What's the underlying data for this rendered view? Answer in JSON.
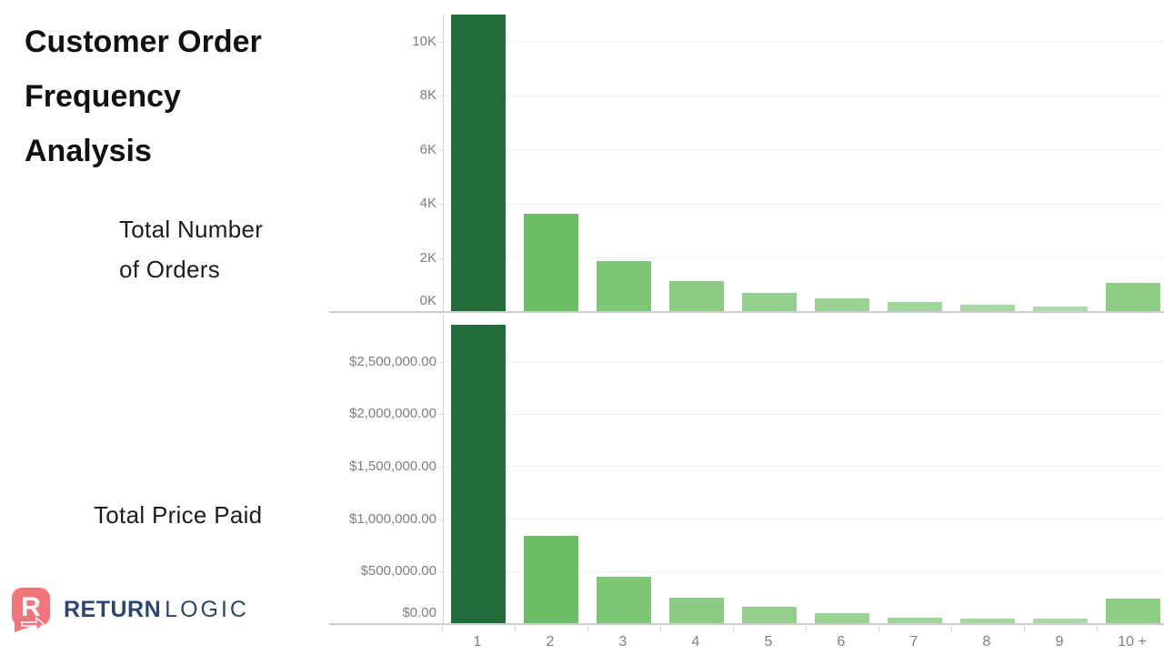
{
  "page": {
    "title_lines": [
      "Customer Order",
      "Frequency",
      "Analysis"
    ]
  },
  "labels": {
    "orders_lines": [
      "Total Number",
      "of Orders"
    ],
    "price": "Total Price Paid"
  },
  "logo": {
    "brand_bold": "RETURN",
    "brand_light": "LOGIC",
    "icon_color": "#f2757c",
    "text_color": "#2b4672"
  },
  "chart_data": [
    {
      "type": "bar",
      "title": "Total Number of Orders",
      "xlabel": "",
      "ylabel": "",
      "categories": [
        "1",
        "2",
        "3",
        "4",
        "5",
        "6",
        "7",
        "8",
        "9",
        "10 +"
      ],
      "values": [
        11000,
        3640,
        1890,
        1140,
        710,
        500,
        370,
        270,
        200,
        1080
      ],
      "ylim": [
        0,
        11000
      ],
      "ytick_values": [
        0,
        2000,
        4000,
        6000,
        8000,
        10000
      ],
      "ytick_labels": [
        "0K",
        "2K",
        "4K",
        "6K",
        "8K",
        "10K"
      ],
      "bar_colors": [
        "#226b3b",
        "#6cbe64",
        "#7dc676",
        "#8bcb83",
        "#95cf8d",
        "#9cd295",
        "#a2d59c",
        "#a7d7a1",
        "#addaa8",
        "#8ecd85"
      ],
      "grid": true,
      "legend": "none",
      "show_x_labels": false
    },
    {
      "type": "bar",
      "title": "Total Price Paid",
      "xlabel": "",
      "ylabel": "",
      "categories": [
        "1",
        "2",
        "3",
        "4",
        "5",
        "6",
        "7",
        "8",
        "9",
        "10 +"
      ],
      "values": [
        2850000,
        840000,
        450000,
        250000,
        165000,
        100000,
        65000,
        48000,
        52000,
        242000
      ],
      "ylim": [
        0,
        2955000
      ],
      "ytick_values": [
        0,
        500000,
        1000000,
        1500000,
        2000000,
        2500000
      ],
      "ytick_labels": [
        "$0.00",
        "$500,000.00",
        "$1,000,000.00",
        "$1,500,000.00",
        "$2,000,000.00",
        "$2,500,000.00"
      ],
      "bar_colors": [
        "#226b3b",
        "#6cbe64",
        "#7dc676",
        "#8bcb83",
        "#95cf8d",
        "#9cd295",
        "#a2d59c",
        "#a7d7a1",
        "#addaa8",
        "#8ecd85"
      ],
      "grid": true,
      "legend": "none",
      "show_x_labels": true
    }
  ],
  "theme": {
    "tick_text_color": "#7e7e7e",
    "gridline_color": "#ededed",
    "axis_line_color": "#cdcdcd",
    "background": "#ffffff",
    "title_color": "#111111"
  }
}
